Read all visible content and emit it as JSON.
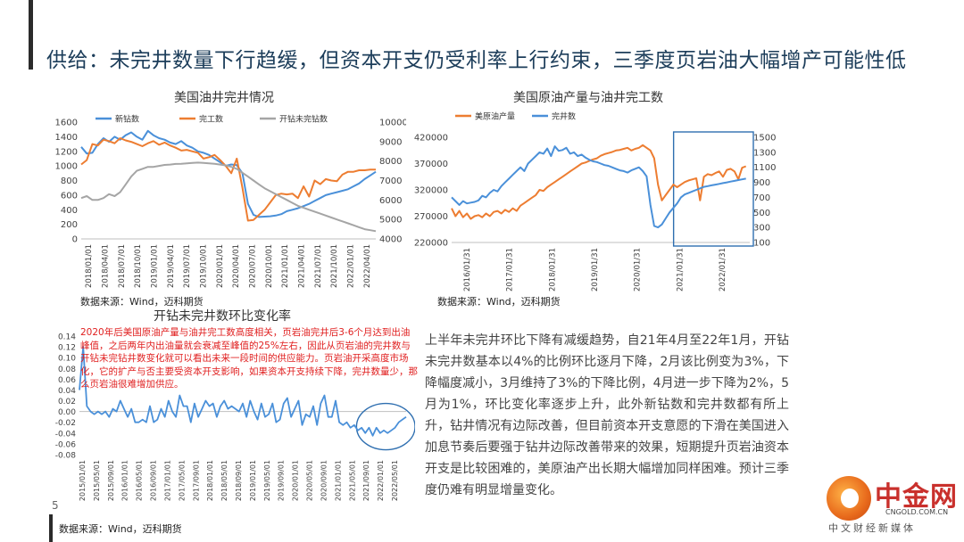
{
  "page": {
    "title": "供给：未完井数量下行趋缓，但资本开支仍受利率上行约束，三季度页岩油大幅增产可能性低",
    "page_number": "5"
  },
  "sources": {
    "c1": "数据来源：Wind，迈科期货",
    "c2": "数据来源：Wind，迈科期货",
    "c3": "数据来源：Wind，迈科期货"
  },
  "note": "2020年后美国原油产量与油井完工数高度相关，页岩油完井后3-6个月达到出油峰值，之后两年内出油量就会衰减至峰值的25%左右，因此从页岩油的完井数与开钻未完钻井数变化就可以看出未来一段时间的供应能力。页岩油开采高度市场化，它的扩产与否主要受资本开支影响，如果资本开支持续下降，完井数量少，那么页岩油很难增加供应。",
  "body_text": "上半年未完井环比下降有减缓趋势，自21年4月至22年1月，开钻未完井数基本以4%的比例环比逐月下降，2月该比例变为3%，下降幅度减小，3月维持了3%的下降比例，4月进一步下降为2%，5月为1%，环比变化率逐步上升，此外新钻数和完井数都有所上升，钻井情况有边际改善，但目前资本开支意愿的下滑在美国进入加息节奏后要强于钻井边际改善带来的效果，短期提升页岩油资本开支是比较困难的，美原油产出长期大幅增加同样困难。预计三季度仍难有明显增量变化。",
  "logo": {
    "main": "中金网",
    "url": "CNGOLD.COM.CN",
    "sub": "中文财经新媒体"
  },
  "colors": {
    "blue": "#4a90d9",
    "orange": "#ed7d31",
    "gray": "#a5a5a5",
    "highlight": "#2f6fb0"
  },
  "chart_data": [
    {
      "id": "c1",
      "type": "line",
      "title": "美国油井完井情况",
      "x_ticks": [
        "2018/01/01",
        "2018/04/01",
        "2018/07/01",
        "2018/10/01",
        "2019/01/01",
        "2019/04/01",
        "2019/07/01",
        "2019/10/01",
        "2020/01/01",
        "2020/04/01",
        "2020/07/01",
        "2020/10/01",
        "2021/01/01",
        "2021/04/01",
        "2021/07/01",
        "2021/10/01",
        "2022/01/01",
        "2022/04/01"
      ],
      "x_range": [
        0,
        53
      ],
      "ylim_left": [
        0,
        1600
      ],
      "yticks_left": [
        0,
        200,
        400,
        600,
        800,
        1000,
        1200,
        1400,
        1600
      ],
      "ylim_right": [
        4000,
        10000
      ],
      "yticks_right": [
        4000,
        5000,
        6000,
        7000,
        8000,
        9000,
        10000
      ],
      "legend": "top",
      "series": [
        {
          "name": "新钻数",
          "color": "#4a90d9",
          "axis": "left",
          "values": [
            1260,
            1170,
            1180,
            1300,
            1380,
            1330,
            1400,
            1360,
            1420,
            1460,
            1400,
            1360,
            1480,
            1420,
            1380,
            1360,
            1320,
            1300,
            1340,
            1280,
            1250,
            1200,
            1180,
            1150,
            1100,
            1050,
            1000,
            1020,
            1010,
            900,
            480,
            330,
            300,
            305,
            310,
            320,
            340,
            380,
            400,
            420,
            450,
            480,
            520,
            560,
            600,
            620,
            640,
            660,
            680,
            720,
            760,
            820,
            870,
            920
          ]
        },
        {
          "name": "完工数",
          "color": "#ed7d31",
          "axis": "left",
          "values": [
            1020,
            1080,
            1300,
            1280,
            1360,
            1340,
            1310,
            1380,
            1350,
            1330,
            1300,
            1270,
            1310,
            1340,
            1290,
            1320,
            1280,
            1250,
            1210,
            1220,
            1200,
            1180,
            1100,
            1120,
            1150,
            1080,
            1000,
            900,
            1100,
            700,
            250,
            260,
            330,
            400,
            500,
            600,
            620,
            610,
            620,
            560,
            720,
            580,
            800,
            750,
            820,
            800,
            790,
            880,
            920,
            920,
            940,
            940,
            950,
            950
          ]
        },
        {
          "name": "开钻未完钻数",
          "color": "#a5a5a5",
          "axis": "right",
          "values": [
            6100,
            6200,
            6000,
            6000,
            6100,
            6300,
            6200,
            6400,
            6800,
            7200,
            7500,
            7600,
            7700,
            7700,
            7750,
            7800,
            7820,
            7850,
            7860,
            7880,
            7900,
            7920,
            7900,
            7880,
            7860,
            7820,
            7780,
            7700,
            7600,
            7400,
            7200,
            7000,
            6800,
            6600,
            6450,
            6300,
            6150,
            6000,
            5850,
            5700,
            5600,
            5500,
            5400,
            5300,
            5200,
            5100,
            5000,
            4900,
            4800,
            4700,
            4600,
            4500,
            4450,
            4400
          ]
        }
      ]
    },
    {
      "id": "c2",
      "type": "line",
      "title": "美国原油产量与油井完工数",
      "x_ticks": [
        "2016/01/31",
        "2017/01/31",
        "2018/01/31",
        "2019/01/31",
        "2020/01/31",
        "2021/01/31",
        "2022/01/31"
      ],
      "x_range": [
        0,
        78
      ],
      "ylim_left": [
        220000,
        420000
      ],
      "yticks_left": [
        220000,
        270000,
        320000,
        370000,
        420000
      ],
      "ylim_right": [
        100,
        1500
      ],
      "yticks_right": [
        100,
        300,
        500,
        700,
        900,
        1100,
        1300,
        1500
      ],
      "legend": "top",
      "series": [
        {
          "name": "美原油产量",
          "color": "#ed7d31",
          "axis": "left",
          "values": [
            285000,
            270000,
            280000,
            268000,
            275000,
            265000,
            270000,
            272000,
            268000,
            275000,
            270000,
            278000,
            280000,
            275000,
            282000,
            278000,
            285000,
            280000,
            290000,
            295000,
            300000,
            305000,
            310000,
            320000,
            318000,
            325000,
            330000,
            335000,
            340000,
            345000,
            350000,
            355000,
            360000,
            365000,
            370000,
            372000,
            375000,
            378000,
            380000,
            385000,
            388000,
            390000,
            392000,
            395000,
            396000,
            398000,
            400000,
            395000,
            398000,
            400000,
            405000,
            400000,
            395000,
            380000,
            330000,
            300000,
            310000,
            320000,
            330000,
            325000,
            330000,
            335000,
            338000,
            340000,
            342000,
            300000,
            345000,
            350000,
            348000,
            352000,
            355000,
            345000,
            358000,
            360000,
            355000,
            340000,
            362000,
            365000
          ]
        },
        {
          "name": "完井数",
          "color": "#4a90d9",
          "axis": "right",
          "values": [
            700,
            650,
            600,
            650,
            620,
            630,
            640,
            660,
            720,
            700,
            760,
            800,
            780,
            850,
            900,
            950,
            1000,
            1050,
            1100,
            1050,
            1150,
            1200,
            1250,
            1300,
            1280,
            1350,
            1250,
            1380,
            1320,
            1330,
            1360,
            1280,
            1300,
            1250,
            1270,
            1230,
            1200,
            1180,
            1170,
            1150,
            1130,
            1120,
            1100,
            1080,
            1060,
            1050,
            1030,
            1060,
            1080,
            1100,
            1050,
            980,
            600,
            320,
            300,
            340,
            420,
            500,
            560,
            620,
            700,
            740,
            760,
            780,
            800,
            820,
            840,
            850,
            860,
            870,
            880,
            890,
            900,
            910,
            920,
            930,
            940,
            950
          ]
        }
      ],
      "highlight_range": [
        59,
        78
      ]
    },
    {
      "id": "c3",
      "type": "line",
      "title": "开钻未完井数环比变化率",
      "x_ticks": [
        "2015/01/01",
        "2015/05/01",
        "2015/09/01",
        "2016/01/01",
        "2016/05/01",
        "2016/09/01",
        "2017/01/01",
        "2017/05/01",
        "2017/09/01",
        "2018/01/01",
        "2018/05/01",
        "2018/09/01",
        "2019/01/01",
        "2019/05/01",
        "2019/09/01",
        "2020/01/01",
        "2020/05/01",
        "2020/09/01",
        "2021/01/01",
        "2021/05/01",
        "2021/09/01",
        "2022/01/01",
        "2022/05/01"
      ],
      "x_range": [
        0,
        88
      ],
      "ylim": [
        -0.08,
        0.14
      ],
      "yticks": [
        -0.08,
        -0.06,
        -0.04,
        -0.02,
        0.0,
        0.02,
        0.04,
        0.06,
        0.08,
        0.1,
        0.12,
        0.14
      ],
      "series": [
        {
          "name": "",
          "color": "#4a90d9",
          "axis": "left",
          "values": [
            0.04,
            0.12,
            0.01,
            0.0,
            -0.005,
            0.0,
            -0.005,
            0.0,
            -0.01,
            0.005,
            0.0,
            0.02,
            0.005,
            -0.01,
            0.005,
            -0.02,
            -0.02,
            -0.015,
            -0.02,
            0.01,
            -0.02,
            -0.015,
            0.005,
            -0.01,
            0.02,
            0.0,
            -0.01,
            0.03,
            0.01,
            0.01,
            -0.02,
            0.015,
            -0.01,
            0.005,
            0.02,
            0.01,
            0.015,
            -0.01,
            0.01,
            0.02,
            0.005,
            0.01,
            0.005,
            0.0,
            0.015,
            -0.01,
            0.02,
            0.0,
            -0.015,
            0.015,
            -0.01,
            -0.005,
            0.015,
            -0.02,
            -0.015,
            0.015,
            0.025,
            -0.01,
            0.005,
            0.02,
            -0.025,
            -0.005,
            -0.01,
            0.01,
            -0.025,
            0.015,
            0.03,
            -0.01,
            -0.01,
            0.02,
            -0.02,
            -0.025,
            -0.02,
            -0.03,
            -0.025,
            -0.035,
            -0.03,
            -0.04,
            -0.03,
            -0.045,
            -0.03,
            -0.04,
            -0.035,
            -0.04,
            -0.035,
            -0.03,
            -0.02,
            -0.015,
            -0.01
          ]
        }
      ],
      "highlight_circle_range": [
        78,
        88
      ]
    }
  ]
}
